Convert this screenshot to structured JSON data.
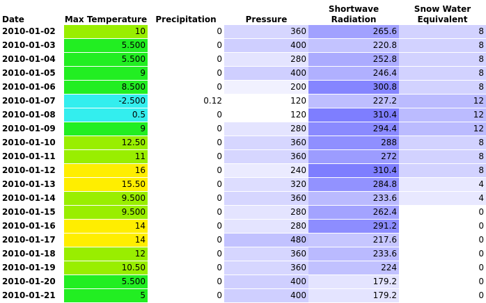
{
  "table": {
    "columns": [
      "Date",
      "Max Temperature",
      "Precipitation",
      "Pressure",
      "Shortwave Radiation",
      "Snow Water Equivalent"
    ],
    "rows": [
      {
        "date": "2010-01-02",
        "temp": "10",
        "precip": "0",
        "pressure": "360",
        "radiation": "265.6",
        "swe": "8"
      },
      {
        "date": "2010-01-03",
        "temp": "5.500",
        "precip": "0",
        "pressure": "400",
        "radiation": "220.8",
        "swe": "8"
      },
      {
        "date": "2010-01-04",
        "temp": "5.500",
        "precip": "0",
        "pressure": "280",
        "radiation": "252.8",
        "swe": "8"
      },
      {
        "date": "2010-01-05",
        "temp": "9",
        "precip": "0",
        "pressure": "400",
        "radiation": "246.4",
        "swe": "8"
      },
      {
        "date": "2010-01-06",
        "temp": "8.500",
        "precip": "0",
        "pressure": "200",
        "radiation": "300.8",
        "swe": "8"
      },
      {
        "date": "2010-01-07",
        "temp": "-2.500",
        "precip": "0.12",
        "pressure": "120",
        "radiation": "227.2",
        "swe": "12"
      },
      {
        "date": "2010-01-08",
        "temp": "0.5",
        "precip": "0",
        "pressure": "120",
        "radiation": "310.4",
        "swe": "12"
      },
      {
        "date": "2010-01-09",
        "temp": "9",
        "precip": "0",
        "pressure": "280",
        "radiation": "294.4",
        "swe": "12"
      },
      {
        "date": "2010-01-10",
        "temp": "12.50",
        "precip": "0",
        "pressure": "360",
        "radiation": "288",
        "swe": "8"
      },
      {
        "date": "2010-01-11",
        "temp": "11",
        "precip": "0",
        "pressure": "360",
        "radiation": "272",
        "swe": "8"
      },
      {
        "date": "2010-01-12",
        "temp": "16",
        "precip": "0",
        "pressure": "240",
        "radiation": "310.4",
        "swe": "8"
      },
      {
        "date": "2010-01-13",
        "temp": "15.50",
        "precip": "0",
        "pressure": "320",
        "radiation": "284.8",
        "swe": "4"
      },
      {
        "date": "2010-01-14",
        "temp": "9.500",
        "precip": "0",
        "pressure": "360",
        "radiation": "233.6",
        "swe": "4"
      },
      {
        "date": "2010-01-15",
        "temp": "9.500",
        "precip": "0",
        "pressure": "280",
        "radiation": "262.4",
        "swe": "0"
      },
      {
        "date": "2010-01-16",
        "temp": "14",
        "precip": "0",
        "pressure": "280",
        "radiation": "291.2",
        "swe": "0"
      },
      {
        "date": "2010-01-17",
        "temp": "14",
        "precip": "0",
        "pressure": "480",
        "radiation": "217.6",
        "swe": "0"
      },
      {
        "date": "2010-01-18",
        "temp": "12",
        "precip": "0",
        "pressure": "360",
        "radiation": "233.6",
        "swe": "0"
      },
      {
        "date": "2010-01-19",
        "temp": "10.50",
        "precip": "0",
        "pressure": "360",
        "radiation": "224",
        "swe": "0"
      },
      {
        "date": "2010-01-20",
        "temp": "5.500",
        "precip": "0",
        "pressure": "400",
        "radiation": "179.2",
        "swe": "0"
      },
      {
        "date": "2010-01-21",
        "temp": "5",
        "precip": "0",
        "pressure": "400",
        "radiation": "179.2",
        "swe": "0"
      }
    ]
  },
  "colors": {
    "temp_cyan": "#33eeee",
    "temp_green": "#22ee22",
    "temp_lime": "#99ee00",
    "temp_yellow": "#ffee00",
    "blue_base": "#7777ff",
    "white": "#ffffff"
  }
}
